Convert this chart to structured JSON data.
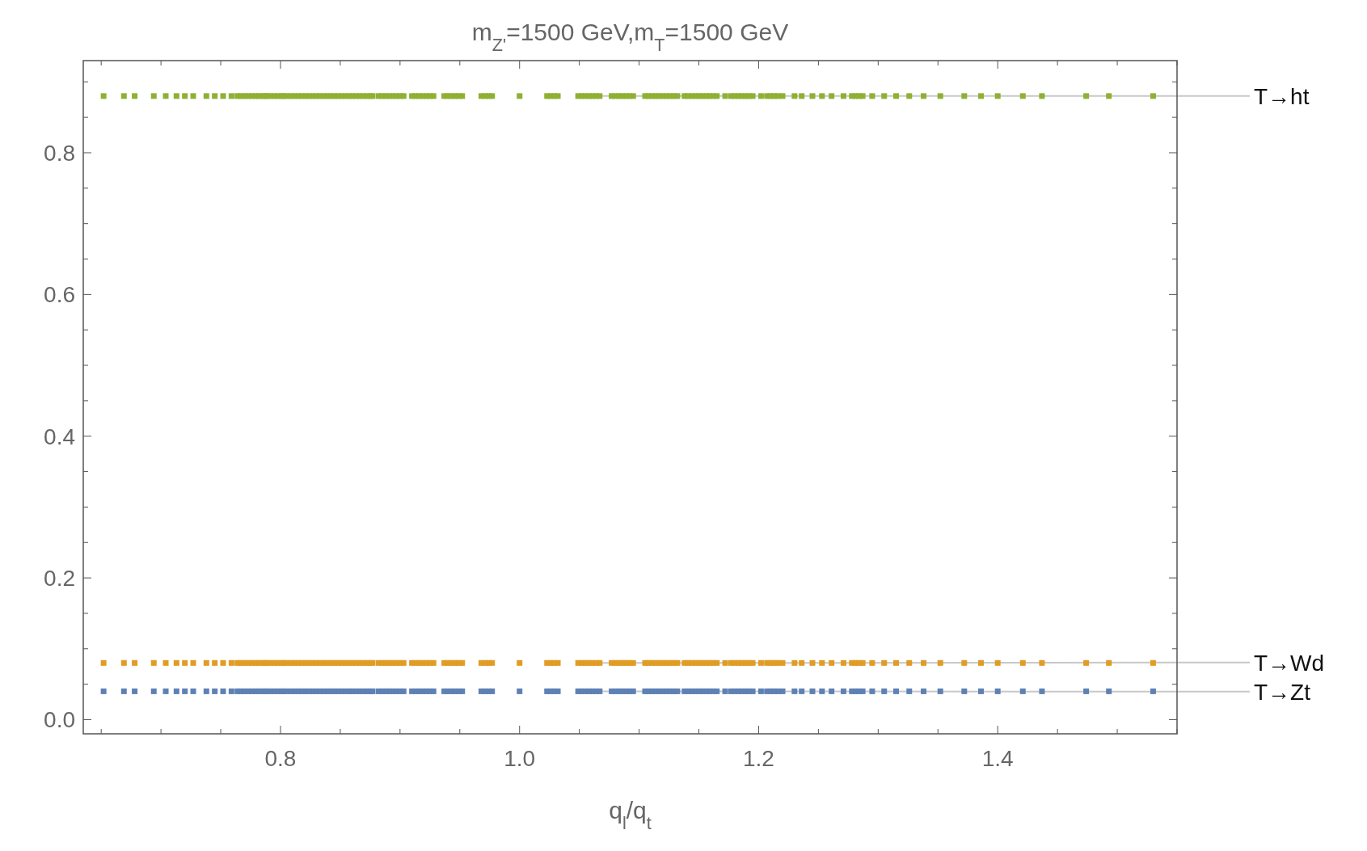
{
  "chart_data": {
    "type": "scatter",
    "title": "m$_{Z'}$=1500 GeV,m$_{T}$=1500 GeV",
    "xlabel": "q$_{l}$/q$_{t}$",
    "x": [
      0.652,
      0.669,
      0.678,
      0.694,
      0.704,
      0.713,
      0.72,
      0.727,
      0.738,
      0.745,
      0.752,
      0.759,
      0.764,
      0.767,
      0.77,
      0.773,
      0.776,
      0.779,
      0.782,
      0.785,
      0.787,
      0.789,
      0.792,
      0.795,
      0.798,
      0.801,
      0.803,
      0.806,
      0.809,
      0.812,
      0.815,
      0.818,
      0.821,
      0.824,
      0.827,
      0.83,
      0.833,
      0.836,
      0.839,
      0.842,
      0.845,
      0.848,
      0.851,
      0.854,
      0.857,
      0.86,
      0.863,
      0.866,
      0.869,
      0.872,
      0.875,
      0.877,
      0.882,
      0.885,
      0.888,
      0.891,
      0.894,
      0.897,
      0.9,
      0.903,
      0.91,
      0.913,
      0.916,
      0.919,
      0.922,
      0.925,
      0.928,
      0.937,
      0.94,
      0.943,
      0.946,
      0.949,
      0.952,
      0.968,
      0.971,
      0.974,
      0.977,
      1.0,
      1.023,
      1.026,
      1.029,
      1.032,
      1.049,
      1.052,
      1.055,
      1.058,
      1.061,
      1.064,
      1.067,
      1.077,
      1.08,
      1.083,
      1.086,
      1.089,
      1.092,
      1.095,
      1.105,
      1.108,
      1.111,
      1.114,
      1.117,
      1.12,
      1.123,
      1.126,
      1.129,
      1.132,
      1.138,
      1.141,
      1.144,
      1.147,
      1.15,
      1.153,
      1.156,
      1.159,
      1.162,
      1.165,
      1.172,
      1.177,
      1.18,
      1.183,
      1.186,
      1.189,
      1.192,
      1.195,
      1.202,
      1.207,
      1.21,
      1.213,
      1.216,
      1.22,
      1.23,
      1.236,
      1.245,
      1.253,
      1.261,
      1.271,
      1.278,
      1.281,
      1.284,
      1.287,
      1.295,
      1.305,
      1.315,
      1.326,
      1.338,
      1.352,
      1.372,
      1.386,
      1.4,
      1.421,
      1.437,
      1.474,
      1.493,
      1.53
    ],
    "series": [
      {
        "name": "T→ht",
        "color": "#8fb032",
        "values": [
          0.88,
          0.88,
          0.88,
          0.88,
          0.88,
          0.88,
          0.88,
          0.88,
          0.88,
          0.88,
          0.88,
          0.88,
          0.88,
          0.88,
          0.88,
          0.88,
          0.88,
          0.88,
          0.88,
          0.88,
          0.88,
          0.88,
          0.88,
          0.88,
          0.88,
          0.88,
          0.88,
          0.88,
          0.88,
          0.88,
          0.88,
          0.88,
          0.88,
          0.88,
          0.88,
          0.88,
          0.88,
          0.88,
          0.88,
          0.88,
          0.88,
          0.88,
          0.88,
          0.88,
          0.88,
          0.88,
          0.88,
          0.88,
          0.88,
          0.88,
          0.88,
          0.88,
          0.88,
          0.88,
          0.88,
          0.88,
          0.88,
          0.88,
          0.88,
          0.88,
          0.88,
          0.88,
          0.88,
          0.88,
          0.88,
          0.88,
          0.88,
          0.88,
          0.88,
          0.88,
          0.88,
          0.88,
          0.88,
          0.88,
          0.88,
          0.88,
          0.88,
          0.88,
          0.88,
          0.88,
          0.88,
          0.88,
          0.88,
          0.88,
          0.88,
          0.88,
          0.88,
          0.88,
          0.88,
          0.88,
          0.88,
          0.88,
          0.88,
          0.88,
          0.88,
          0.88,
          0.88,
          0.88,
          0.88,
          0.88,
          0.88,
          0.88,
          0.88,
          0.88,
          0.88,
          0.88,
          0.88,
          0.88,
          0.88,
          0.88,
          0.88,
          0.88,
          0.88,
          0.88,
          0.88,
          0.88,
          0.88,
          0.88,
          0.88,
          0.88,
          0.88,
          0.88,
          0.88,
          0.88,
          0.88,
          0.88,
          0.88,
          0.88,
          0.88,
          0.88,
          0.88,
          0.88,
          0.88,
          0.88,
          0.88,
          0.88,
          0.88,
          0.88,
          0.88,
          0.88,
          0.88,
          0.88,
          0.88,
          0.88,
          0.88,
          0.88,
          0.88,
          0.88,
          0.88,
          0.88,
          0.88,
          0.88,
          0.88,
          0.88
        ]
      },
      {
        "name": "T→Wd",
        "color": "#e19c24",
        "values": [
          0.08,
          0.08,
          0.08,
          0.08,
          0.08,
          0.08,
          0.08,
          0.08,
          0.08,
          0.08,
          0.08,
          0.08,
          0.08,
          0.08,
          0.08,
          0.08,
          0.08,
          0.08,
          0.08,
          0.08,
          0.08,
          0.08,
          0.08,
          0.08,
          0.08,
          0.08,
          0.08,
          0.08,
          0.08,
          0.08,
          0.08,
          0.08,
          0.08,
          0.08,
          0.08,
          0.08,
          0.08,
          0.08,
          0.08,
          0.08,
          0.08,
          0.08,
          0.08,
          0.08,
          0.08,
          0.08,
          0.08,
          0.08,
          0.08,
          0.08,
          0.08,
          0.08,
          0.08,
          0.08,
          0.08,
          0.08,
          0.08,
          0.08,
          0.08,
          0.08,
          0.08,
          0.08,
          0.08,
          0.08,
          0.08,
          0.08,
          0.08,
          0.08,
          0.08,
          0.08,
          0.08,
          0.08,
          0.08,
          0.08,
          0.08,
          0.08,
          0.08,
          0.08,
          0.08,
          0.08,
          0.08,
          0.08,
          0.08,
          0.08,
          0.08,
          0.08,
          0.08,
          0.08,
          0.08,
          0.08,
          0.08,
          0.08,
          0.08,
          0.08,
          0.08,
          0.08,
          0.08,
          0.08,
          0.08,
          0.08,
          0.08,
          0.08,
          0.08,
          0.08,
          0.08,
          0.08,
          0.08,
          0.08,
          0.08,
          0.08,
          0.08,
          0.08,
          0.08,
          0.08,
          0.08,
          0.08,
          0.08,
          0.08,
          0.08,
          0.08,
          0.08,
          0.08,
          0.08,
          0.08,
          0.08,
          0.08,
          0.08,
          0.08,
          0.08,
          0.08,
          0.08,
          0.08,
          0.08,
          0.08,
          0.08,
          0.08,
          0.08,
          0.08,
          0.08,
          0.08,
          0.08,
          0.08,
          0.08,
          0.08,
          0.08,
          0.08,
          0.08,
          0.08,
          0.08,
          0.08,
          0.08,
          0.08,
          0.08,
          0.08
        ]
      },
      {
        "name": "T→Zt",
        "color": "#5e81b5",
        "values": [
          0.04,
          0.04,
          0.04,
          0.04,
          0.04,
          0.04,
          0.04,
          0.04,
          0.04,
          0.04,
          0.04,
          0.04,
          0.04,
          0.04,
          0.04,
          0.04,
          0.04,
          0.04,
          0.04,
          0.04,
          0.04,
          0.04,
          0.04,
          0.04,
          0.04,
          0.04,
          0.04,
          0.04,
          0.04,
          0.04,
          0.04,
          0.04,
          0.04,
          0.04,
          0.04,
          0.04,
          0.04,
          0.04,
          0.04,
          0.04,
          0.04,
          0.04,
          0.04,
          0.04,
          0.04,
          0.04,
          0.04,
          0.04,
          0.04,
          0.04,
          0.04,
          0.04,
          0.04,
          0.04,
          0.04,
          0.04,
          0.04,
          0.04,
          0.04,
          0.04,
          0.04,
          0.04,
          0.04,
          0.04,
          0.04,
          0.04,
          0.04,
          0.04,
          0.04,
          0.04,
          0.04,
          0.04,
          0.04,
          0.04,
          0.04,
          0.04,
          0.04,
          0.04,
          0.04,
          0.04,
          0.04,
          0.04,
          0.04,
          0.04,
          0.04,
          0.04,
          0.04,
          0.04,
          0.04,
          0.04,
          0.04,
          0.04,
          0.04,
          0.04,
          0.04,
          0.04,
          0.04,
          0.04,
          0.04,
          0.04,
          0.04,
          0.04,
          0.04,
          0.04,
          0.04,
          0.04,
          0.04,
          0.04,
          0.04,
          0.04,
          0.04,
          0.04,
          0.04,
          0.04,
          0.04,
          0.04,
          0.04,
          0.04,
          0.04,
          0.04,
          0.04,
          0.04,
          0.04,
          0.04,
          0.04,
          0.04,
          0.04,
          0.04,
          0.04,
          0.04,
          0.04,
          0.04,
          0.04,
          0.04,
          0.04,
          0.04,
          0.04,
          0.04,
          0.04,
          0.04,
          0.04,
          0.04,
          0.04,
          0.04,
          0.04,
          0.04,
          0.04,
          0.04,
          0.04,
          0.04,
          0.04,
          0.04,
          0.04,
          0.04
        ]
      }
    ],
    "xlim": [
      0.635,
      1.55
    ],
    "ylim": [
      -0.02,
      0.93
    ],
    "xticks": [
      {
        "value": 0.65,
        "label": null
      },
      {
        "value": 0.7,
        "label": null
      },
      {
        "value": 0.75,
        "label": null
      },
      0.8,
      {
        "value": 0.85,
        "label": null
      },
      {
        "value": 0.9,
        "label": null
      },
      {
        "value": 0.95,
        "label": null
      },
      {
        "value": 1.0,
        "label": "1.0"
      },
      {
        "value": 1.05,
        "label": null
      },
      {
        "value": 1.1,
        "label": null
      },
      {
        "value": 1.15,
        "label": null
      },
      1.2,
      {
        "value": 1.25,
        "label": null
      },
      {
        "value": 1.3,
        "label": null
      },
      {
        "value": 1.35,
        "label": null
      },
      1.4,
      {
        "value": 1.45,
        "label": null
      },
      {
        "value": 1.5,
        "label": null
      },
      {
        "value": 1.55,
        "label": null
      }
    ],
    "yticks": [
      {
        "value": 0,
        "label": "0.0"
      },
      {
        "value": 0.05,
        "label": null
      },
      0.2,
      {
        "value": 0.1,
        "label": null
      },
      {
        "value": 0.15,
        "label": null
      },
      {
        "value": 0.25,
        "label": null
      },
      {
        "value": 0.3,
        "label": null
      },
      {
        "value": 0.35,
        "label": null
      },
      0.4,
      {
        "value": 0.45,
        "label": null
      },
      {
        "value": 0.5,
        "label": null
      },
      {
        "value": 0.55,
        "label": null
      },
      0.6,
      {
        "value": 0.65,
        "label": null
      },
      {
        "value": 0.7,
        "label": null
      },
      {
        "value": 0.75,
        "label": null
      },
      0.8,
      {
        "value": 0.85,
        "label": null
      },
      {
        "value": 0.9,
        "label": null
      }
    ],
    "marker": "square"
  }
}
